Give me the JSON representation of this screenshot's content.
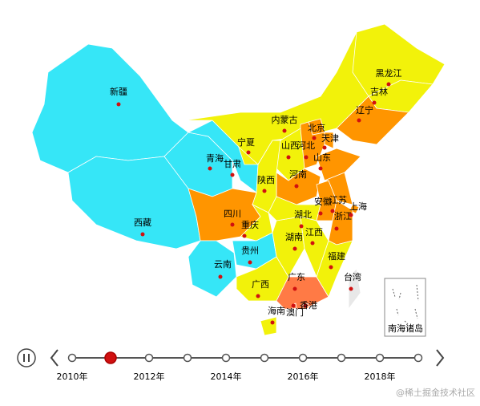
{
  "map": {
    "regions": [
      {
        "name": "新疆",
        "color": "#36e6f7"
      },
      {
        "name": "西藏",
        "color": "#36e6f7"
      },
      {
        "name": "青海",
        "color": "#36e6f7"
      },
      {
        "name": "甘肃",
        "color": "#36e6f7"
      },
      {
        "name": "宁夏",
        "color": "#f2f20a"
      },
      {
        "name": "内蒙古",
        "color": "#f2f20a"
      },
      {
        "name": "黑龙江",
        "color": "#f2f20a"
      },
      {
        "name": "吉林",
        "color": "#f2f20a"
      },
      {
        "name": "辽宁",
        "color": "#ff9500"
      },
      {
        "name": "北京",
        "color": "#ff9500"
      },
      {
        "name": "天津",
        "color": "#ff9500"
      },
      {
        "name": "河北",
        "color": "#ff9500"
      },
      {
        "name": "山西",
        "color": "#f2f20a"
      },
      {
        "name": "山东",
        "color": "#ff9500"
      },
      {
        "name": "河南",
        "color": "#ff9500"
      },
      {
        "name": "陕西",
        "color": "#f2f20a"
      },
      {
        "name": "四川",
        "color": "#ff9500"
      },
      {
        "name": "重庆",
        "color": "#f2f20a"
      },
      {
        "name": "云南",
        "color": "#36e6f7"
      },
      {
        "name": "贵州",
        "color": "#36e6f7"
      },
      {
        "name": "广西",
        "color": "#f2f20a"
      },
      {
        "name": "广东",
        "color": "#ff7a45"
      },
      {
        "name": "湖南",
        "color": "#f2f20a"
      },
      {
        "name": "湖北",
        "color": "#f2f20a"
      },
      {
        "name": "江西",
        "color": "#f2f20a"
      },
      {
        "name": "安徽",
        "color": "#ff9500"
      },
      {
        "name": "江苏",
        "color": "#ff9500"
      },
      {
        "name": "上海",
        "color": "#ff9500"
      },
      {
        "name": "浙江",
        "color": "#ff9500"
      },
      {
        "name": "福建",
        "color": "#f2f20a"
      },
      {
        "name": "台湾",
        "color": "#e8e8e8"
      },
      {
        "name": "海南",
        "color": "#f2f20a"
      },
      {
        "name": "香港",
        "color": "#ff7a45"
      },
      {
        "name": "澳门",
        "color": "#ff7a45"
      }
    ],
    "inset_label": "南海诸岛"
  },
  "timeline": {
    "labels": [
      "2010年",
      "2012年",
      "2014年",
      "2016年",
      "2018年"
    ]
  },
  "watermark": "@稀土掘金技术社区"
}
